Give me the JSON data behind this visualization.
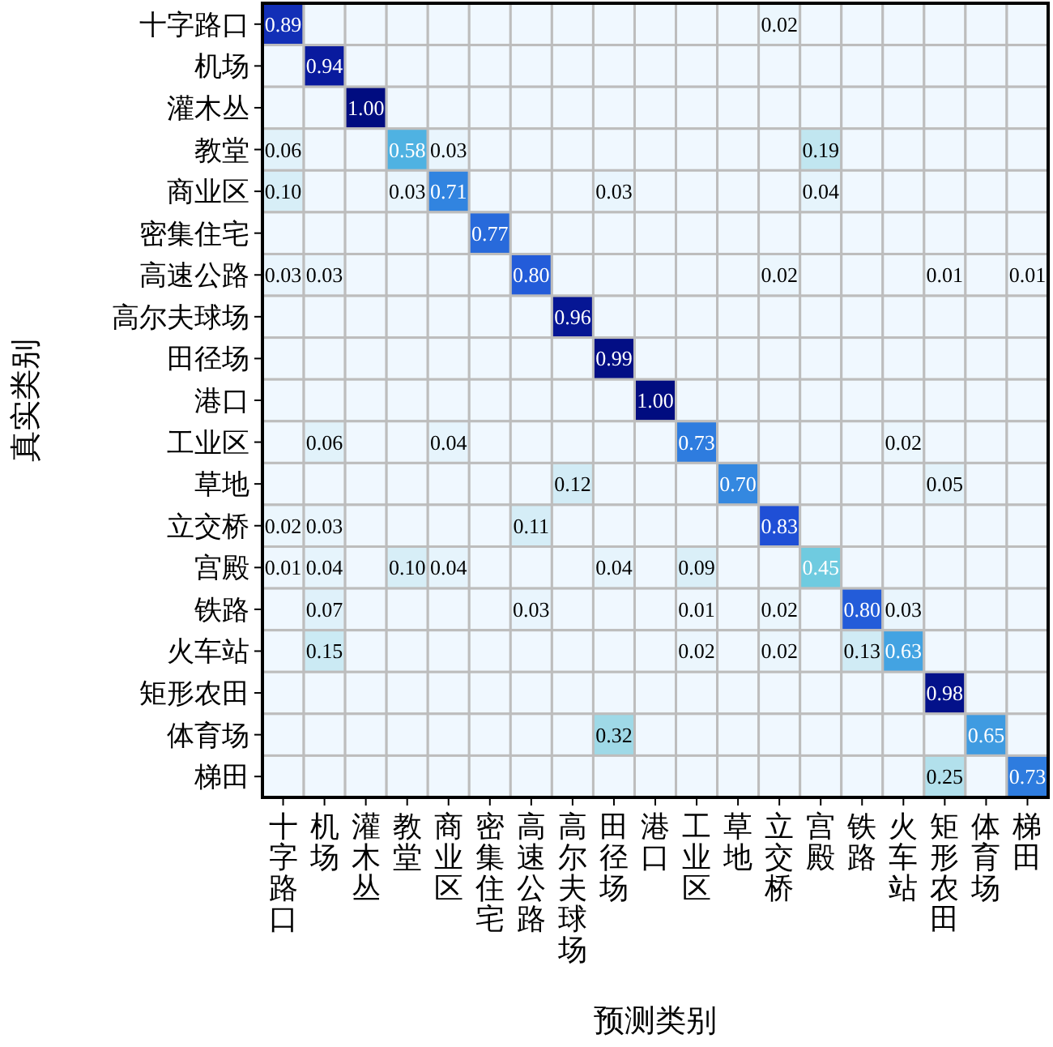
{
  "chart_data": {
    "type": "heatmap",
    "xlabel": "预测类别",
    "ylabel": "真实类别",
    "categories": [
      "十字路口",
      "机场",
      "灌木丛",
      "教堂",
      "商业区",
      "密集住宅",
      "高速公路",
      "高尔夫球场",
      "田径场",
      "港口",
      "工业区",
      "草地",
      "立交桥",
      "宫殿",
      "铁路",
      "火车站",
      "矩形农田",
      "体育场",
      "梯田"
    ],
    "y_categories": [
      "十字路口",
      "机场",
      "灌木丛",
      "教堂",
      "商业区",
      "密集住宅",
      "高速公路",
      "高尔夫球场",
      "田径场",
      "港口",
      "工业区",
      "草地",
      "立交桥",
      "宫殿",
      "铁路",
      "火车站",
      "矩形农田",
      "体育场",
      "梯田"
    ],
    "cells": [
      [
        0.89,
        null,
        null,
        null,
        null,
        null,
        null,
        null,
        null,
        null,
        null,
        null,
        0.02,
        null,
        null,
        null,
        null,
        null,
        null
      ],
      [
        null,
        0.94,
        null,
        null,
        null,
        null,
        null,
        null,
        null,
        null,
        null,
        null,
        null,
        null,
        null,
        null,
        null,
        null,
        null
      ],
      [
        null,
        null,
        1.0,
        null,
        null,
        null,
        null,
        null,
        null,
        null,
        null,
        null,
        null,
        null,
        null,
        null,
        null,
        null,
        null
      ],
      [
        0.06,
        null,
        null,
        0.58,
        0.03,
        null,
        null,
        null,
        null,
        null,
        null,
        null,
        null,
        0.19,
        null,
        null,
        null,
        null,
        null
      ],
      [
        0.1,
        null,
        null,
        0.03,
        0.71,
        null,
        null,
        null,
        0.03,
        null,
        null,
        null,
        null,
        0.04,
        null,
        null,
        null,
        null,
        null
      ],
      [
        null,
        null,
        null,
        null,
        null,
        0.77,
        null,
        null,
        null,
        null,
        null,
        null,
        null,
        null,
        null,
        null,
        null,
        null,
        null
      ],
      [
        0.03,
        0.03,
        null,
        null,
        null,
        null,
        0.8,
        null,
        null,
        null,
        null,
        null,
        0.02,
        null,
        null,
        null,
        0.01,
        null,
        0.01
      ],
      [
        null,
        null,
        null,
        null,
        null,
        null,
        null,
        0.96,
        null,
        null,
        null,
        null,
        null,
        null,
        null,
        null,
        null,
        null,
        null
      ],
      [
        null,
        null,
        null,
        null,
        null,
        null,
        null,
        null,
        0.99,
        null,
        null,
        null,
        null,
        null,
        null,
        null,
        null,
        null,
        null
      ],
      [
        null,
        null,
        null,
        null,
        null,
        null,
        null,
        null,
        null,
        1.0,
        null,
        null,
        null,
        null,
        null,
        null,
        null,
        null,
        null
      ],
      [
        null,
        0.06,
        null,
        null,
        0.04,
        null,
        null,
        null,
        null,
        null,
        0.73,
        null,
        null,
        null,
        null,
        0.02,
        null,
        null,
        null
      ],
      [
        null,
        null,
        null,
        null,
        null,
        null,
        null,
        0.12,
        null,
        null,
        null,
        0.7,
        null,
        null,
        null,
        null,
        0.05,
        null,
        null
      ],
      [
        0.02,
        0.03,
        null,
        null,
        null,
        null,
        0.11,
        null,
        null,
        null,
        null,
        null,
        0.83,
        null,
        null,
        null,
        null,
        null,
        null
      ],
      [
        0.01,
        0.04,
        null,
        0.1,
        0.04,
        null,
        null,
        null,
        0.04,
        null,
        0.09,
        null,
        null,
        0.45,
        null,
        null,
        null,
        null,
        null
      ],
      [
        null,
        0.07,
        null,
        null,
        null,
        null,
        0.03,
        null,
        null,
        null,
        0.01,
        null,
        0.02,
        null,
        0.8,
        0.03,
        null,
        null,
        null
      ],
      [
        null,
        0.15,
        null,
        null,
        null,
        null,
        null,
        null,
        null,
        null,
        0.02,
        null,
        0.02,
        null,
        0.13,
        0.63,
        null,
        null,
        null
      ],
      [
        null,
        null,
        null,
        null,
        null,
        null,
        null,
        null,
        null,
        null,
        null,
        null,
        null,
        null,
        null,
        null,
        0.98,
        null,
        null
      ],
      [
        null,
        null,
        null,
        null,
        null,
        null,
        null,
        null,
        0.32,
        null,
        null,
        null,
        null,
        null,
        null,
        null,
        null,
        0.65,
        null
      ],
      [
        null,
        null,
        null,
        null,
        null,
        null,
        null,
        null,
        null,
        null,
        null,
        null,
        null,
        null,
        null,
        null,
        0.25,
        null,
        0.73
      ]
    ],
    "cell_labels": [
      [
        "0.89",
        null,
        null,
        null,
        null,
        null,
        null,
        null,
        null,
        null,
        null,
        null,
        "0.02",
        null,
        null,
        null,
        null,
        null,
        null
      ],
      [
        null,
        "0.94",
        null,
        null,
        null,
        null,
        null,
        null,
        null,
        null,
        null,
        null,
        null,
        null,
        null,
        null,
        null,
        null,
        null
      ],
      [
        null,
        null,
        "1.00",
        null,
        null,
        null,
        null,
        null,
        null,
        null,
        null,
        null,
        null,
        null,
        null,
        null,
        null,
        null,
        null
      ],
      [
        "0.06",
        null,
        null,
        "0.58",
        "0.03",
        null,
        null,
        null,
        null,
        null,
        null,
        null,
        null,
        "0.19",
        null,
        null,
        null,
        null,
        null
      ],
      [
        "0.10",
        null,
        null,
        "0.03",
        "0.71",
        null,
        null,
        null,
        "0.03",
        null,
        null,
        null,
        null,
        "0.04",
        null,
        null,
        null,
        null,
        null
      ],
      [
        null,
        null,
        null,
        null,
        null,
        "0.77",
        null,
        null,
        null,
        null,
        null,
        null,
        null,
        null,
        null,
        null,
        null,
        null,
        null
      ],
      [
        "0.03",
        "0.03",
        null,
        null,
        null,
        null,
        "0.80",
        null,
        null,
        null,
        null,
        null,
        "0.02",
        null,
        null,
        null,
        "0.01",
        null,
        "0.01"
      ],
      [
        null,
        null,
        null,
        null,
        null,
        null,
        null,
        "0.96",
        null,
        null,
        null,
        null,
        null,
        null,
        null,
        null,
        null,
        null,
        null
      ],
      [
        null,
        null,
        null,
        null,
        null,
        null,
        null,
        null,
        "0.99",
        null,
        null,
        null,
        null,
        null,
        null,
        null,
        null,
        null,
        null
      ],
      [
        null,
        null,
        null,
        null,
        null,
        null,
        null,
        null,
        null,
        "1.00",
        null,
        null,
        null,
        null,
        null,
        null,
        null,
        null,
        null
      ],
      [
        null,
        "0.06",
        null,
        null,
        "0.04",
        null,
        null,
        null,
        null,
        null,
        "0.73",
        null,
        null,
        null,
        null,
        "0.02",
        null,
        null,
        null
      ],
      [
        null,
        null,
        null,
        null,
        null,
        null,
        null,
        "0.12",
        null,
        null,
        null,
        "0.70",
        null,
        null,
        null,
        null,
        "0.05",
        null,
        null
      ],
      [
        "0.02",
        "0.03",
        null,
        null,
        null,
        null,
        "0.11",
        null,
        null,
        null,
        null,
        null,
        "0.83",
        null,
        null,
        null,
        null,
        null,
        null
      ],
      [
        "0.01",
        "0.04",
        null,
        "0.10",
        "0.04",
        null,
        null,
        null,
        "0.04",
        null,
        "0.09",
        null,
        null,
        "0.45",
        null,
        null,
        null,
        null,
        null
      ],
      [
        null,
        "0.07",
        null,
        null,
        null,
        null,
        "0.03",
        null,
        null,
        null,
        "0.01",
        null,
        "0.02",
        null,
        "0.80",
        "0.03",
        null,
        null,
        null
      ],
      [
        null,
        "0.15",
        null,
        null,
        null,
        null,
        null,
        null,
        null,
        null,
        "0.02",
        null,
        "0.02",
        null,
        "0.13",
        "0.63",
        null,
        null,
        null
      ],
      [
        null,
        null,
        null,
        null,
        null,
        null,
        null,
        null,
        null,
        null,
        null,
        null,
        null,
        null,
        null,
        null,
        "0.98",
        null,
        null
      ],
      [
        null,
        null,
        null,
        null,
        null,
        null,
        null,
        null,
        "0.32",
        null,
        null,
        null,
        null,
        null,
        null,
        null,
        null,
        "0.65",
        null
      ],
      [
        null,
        null,
        null,
        null,
        null,
        null,
        null,
        null,
        null,
        null,
        null,
        null,
        null,
        null,
        null,
        null,
        "0.25",
        null,
        "0.73"
      ]
    ]
  }
}
